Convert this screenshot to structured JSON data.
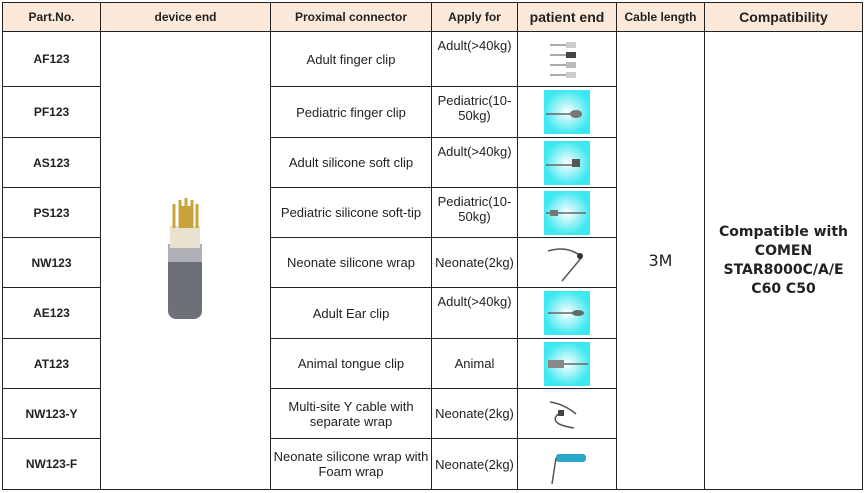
{
  "headers": {
    "part_no": "Part.No.",
    "device_end": "device end",
    "proximal_connector": "Proximal connector",
    "apply_for": "Apply for",
    "patient_end": "patient end",
    "cable_length": "Cable length",
    "compatibility": "Compatibility"
  },
  "header_bg": "#fde9d9",
  "rows": [
    {
      "part_no": "AF123",
      "connector": "Adult finger clip",
      "apply_for": "Adult(>40kg)",
      "patient_end_image": "adult-finger-clip-sensor",
      "image_bg": "white"
    },
    {
      "part_no": "PF123",
      "connector": "Pediatric finger clip",
      "apply_for": "Pediatric(10-50kg)",
      "patient_end_image": "pediatric-finger-clip-sensor",
      "image_bg": "cyan"
    },
    {
      "part_no": "AS123",
      "connector": "Adult silicone soft clip",
      "apply_for": "Adult(>40kg)",
      "patient_end_image": "adult-silicone-clip-sensor",
      "image_bg": "cyan"
    },
    {
      "part_no": "PS123",
      "connector": "Pediatric silicone soft-tip",
      "apply_for": "Pediatric(10-50kg)",
      "patient_end_image": "pediatric-silicone-tip-sensor",
      "image_bg": "cyan"
    },
    {
      "part_no": "NW123",
      "connector": "Neonate silicone wrap",
      "apply_for": "Neonate(2kg)",
      "patient_end_image": "neonate-wrap-sensor",
      "image_bg": "white"
    },
    {
      "part_no": "AE123",
      "connector": "Adult Ear clip",
      "apply_for": "Adult(>40kg)",
      "patient_end_image": "ear-clip-sensor",
      "image_bg": "cyan"
    },
    {
      "part_no": "AT123",
      "connector": "Animal tongue clip",
      "apply_for": "Animal",
      "patient_end_image": "tongue-clip-sensor",
      "image_bg": "cyan"
    },
    {
      "part_no": "NW123-Y",
      "connector": "Multi-site Y cable with separate wrap",
      "apply_for": "Neonate(2kg)",
      "patient_end_image": "y-cable-sensor",
      "image_bg": "white"
    },
    {
      "part_no": "NW123-F",
      "connector": "Neonate silicone wrap with Foam wrap",
      "apply_for": "Neonate(2kg)",
      "patient_end_image": "foam-wrap-sensor",
      "image_bg": "white"
    }
  ],
  "device_end_image": "7-pin-connector",
  "cable_length": "3M",
  "compatibility": "Compatible with COMEN STAR8000C/A/E C60 C50"
}
